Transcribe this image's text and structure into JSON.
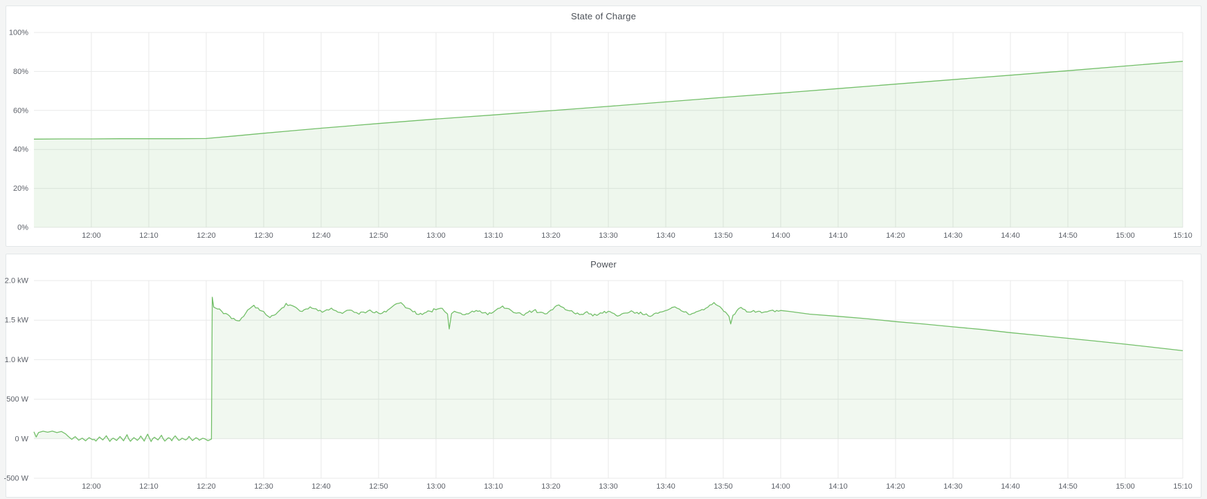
{
  "page": {
    "background": "#f4f5f5",
    "panel_background": "#ffffff",
    "gridline_color": "#e8e9e9",
    "accent_green": "#73bf69"
  },
  "panels": [
    {
      "title": "State of Charge"
    },
    {
      "title": "Power"
    }
  ],
  "chart_data": [
    {
      "type": "area",
      "title": "State of Charge",
      "unit": "percent",
      "xlim_minutes": [
        0,
        200
      ],
      "ylim": [
        0,
        100
      ],
      "fill_baseline": 0,
      "grid": true,
      "legend": "none",
      "x_ticks": [
        {
          "t": 10,
          "label": "12:00"
        },
        {
          "t": 20,
          "label": "12:10"
        },
        {
          "t": 30,
          "label": "12:20"
        },
        {
          "t": 40,
          "label": "12:30"
        },
        {
          "t": 50,
          "label": "12:40"
        },
        {
          "t": 60,
          "label": "12:50"
        },
        {
          "t": 70,
          "label": "13:00"
        },
        {
          "t": 80,
          "label": "13:10"
        },
        {
          "t": 90,
          "label": "13:20"
        },
        {
          "t": 100,
          "label": "13:30"
        },
        {
          "t": 110,
          "label": "13:40"
        },
        {
          "t": 120,
          "label": "13:50"
        },
        {
          "t": 130,
          "label": "14:00"
        },
        {
          "t": 140,
          "label": "14:10"
        },
        {
          "t": 150,
          "label": "14:20"
        },
        {
          "t": 160,
          "label": "14:30"
        },
        {
          "t": 170,
          "label": "14:40"
        },
        {
          "t": 180,
          "label": "14:50"
        },
        {
          "t": 190,
          "label": "15:00"
        },
        {
          "t": 200,
          "label": "15:10"
        }
      ],
      "y_ticks": [
        {
          "v": 0,
          "label": "0%"
        },
        {
          "v": 20,
          "label": "20%"
        },
        {
          "v": 40,
          "label": "40%"
        },
        {
          "v": 60,
          "label": "60%"
        },
        {
          "v": 80,
          "label": "80%"
        },
        {
          "v": 100,
          "label": "100%"
        }
      ],
      "series": [
        {
          "name": "State of Charge",
          "color": "#73bf69",
          "fill": "rgba(115,191,105,0.12)",
          "points": [
            [
              0,
              45.3
            ],
            [
              5,
              45.4
            ],
            [
              10,
              45.4
            ],
            [
              15,
              45.5
            ],
            [
              20,
              45.5
            ],
            [
              25,
              45.5
            ],
            [
              30,
              45.6
            ],
            [
              35,
              46.9
            ],
            [
              40,
              48.3
            ],
            [
              45,
              49.6
            ],
            [
              50,
              50.9
            ],
            [
              55,
              52.1
            ],
            [
              60,
              53.3
            ],
            [
              70,
              55.6
            ],
            [
              80,
              57.7
            ],
            [
              90,
              59.9
            ],
            [
              100,
              62.1
            ],
            [
              110,
              64.4
            ],
            [
              120,
              66.7
            ],
            [
              130,
              68.9
            ],
            [
              140,
              71.2
            ],
            [
              150,
              73.5
            ],
            [
              160,
              75.8
            ],
            [
              170,
              78.1
            ],
            [
              180,
              80.4
            ],
            [
              190,
              82.8
            ],
            [
              200,
              85.2
            ]
          ]
        }
      ]
    },
    {
      "type": "area",
      "title": "Power",
      "unit": "watt",
      "xlim_minutes": [
        0,
        200
      ],
      "ylim": [
        -500,
        2000
      ],
      "fill_baseline": 0,
      "grid": true,
      "legend": "none",
      "x_ticks": [
        {
          "t": 10,
          "label": "12:00"
        },
        {
          "t": 20,
          "label": "12:10"
        },
        {
          "t": 30,
          "label": "12:20"
        },
        {
          "t": 40,
          "label": "12:30"
        },
        {
          "t": 50,
          "label": "12:40"
        },
        {
          "t": 60,
          "label": "12:50"
        },
        {
          "t": 70,
          "label": "13:00"
        },
        {
          "t": 80,
          "label": "13:10"
        },
        {
          "t": 90,
          "label": "13:20"
        },
        {
          "t": 100,
          "label": "13:30"
        },
        {
          "t": 110,
          "label": "13:40"
        },
        {
          "t": 120,
          "label": "13:50"
        },
        {
          "t": 130,
          "label": "14:00"
        },
        {
          "t": 140,
          "label": "14:10"
        },
        {
          "t": 150,
          "label": "14:20"
        },
        {
          "t": 160,
          "label": "14:30"
        },
        {
          "t": 170,
          "label": "14:40"
        },
        {
          "t": 180,
          "label": "14:50"
        },
        {
          "t": 190,
          "label": "15:00"
        },
        {
          "t": 200,
          "label": "15:10"
        }
      ],
      "y_ticks": [
        {
          "v": -500,
          "label": "-500 W"
        },
        {
          "v": 0,
          "label": "0 W"
        },
        {
          "v": 500,
          "label": "500 W"
        },
        {
          "v": 1000,
          "label": "1.0 kW"
        },
        {
          "v": 1500,
          "label": "1.5 kW"
        },
        {
          "v": 2000,
          "label": "2.0 kW"
        }
      ],
      "series": [
        {
          "name": "Power",
          "color": "#73bf69",
          "fill": "rgba(115,191,105,0.10)",
          "noise": {
            "step": 0.3,
            "seed": 42,
            "ranges": [
              {
                "from": 6,
                "to": 30.9,
                "amp": 16
              },
              {
                "from": 31.3,
                "to": 130,
                "amp": 20
              }
            ]
          },
          "points": [
            [
              0,
              88
            ],
            [
              0.4,
              22
            ],
            [
              0.8,
              78
            ],
            [
              1.6,
              95
            ],
            [
              2.4,
              82
            ],
            [
              3.2,
              96
            ],
            [
              4,
              78
            ],
            [
              4.8,
              92
            ],
            [
              5.5,
              62
            ],
            [
              6,
              28
            ],
            [
              6.6,
              -8
            ],
            [
              7.2,
              26
            ],
            [
              7.8,
              -18
            ],
            [
              8.4,
              8
            ],
            [
              9,
              -26
            ],
            [
              9.6,
              14
            ],
            [
              10.2,
              -12
            ],
            [
              10.8,
              -30
            ],
            [
              11.4,
              22
            ],
            [
              12,
              -16
            ],
            [
              12.6,
              38
            ],
            [
              13.2,
              -34
            ],
            [
              13.8,
              8
            ],
            [
              14.4,
              -22
            ],
            [
              15,
              28
            ],
            [
              15.6,
              -26
            ],
            [
              16.2,
              52
            ],
            [
              16.8,
              -32
            ],
            [
              17.4,
              14
            ],
            [
              18,
              -20
            ],
            [
              18.6,
              34
            ],
            [
              19.2,
              -30
            ],
            [
              19.8,
              58
            ],
            [
              20.4,
              -36
            ],
            [
              21,
              18
            ],
            [
              21.6,
              -16
            ],
            [
              22.2,
              44
            ],
            [
              22.8,
              -30
            ],
            [
              23.4,
              12
            ],
            [
              24,
              -26
            ],
            [
              24.6,
              36
            ],
            [
              25.2,
              -20
            ],
            [
              25.8,
              8
            ],
            [
              26.4,
              -16
            ],
            [
              27,
              30
            ],
            [
              27.6,
              -24
            ],
            [
              28.2,
              12
            ],
            [
              28.8,
              -18
            ],
            [
              29.4,
              6
            ],
            [
              30,
              -12
            ],
            [
              30.9,
              -4
            ],
            [
              31.05,
              1790
            ],
            [
              31.3,
              1665
            ],
            [
              32,
              1640
            ],
            [
              32.7,
              1612
            ],
            [
              33.4,
              1585
            ],
            [
              34.1,
              1550
            ],
            [
              34.8,
              1522
            ],
            [
              35.5,
              1492
            ],
            [
              36.2,
              1532
            ],
            [
              36.9,
              1592
            ],
            [
              37.6,
              1648
            ],
            [
              38.3,
              1688
            ],
            [
              39,
              1655
            ],
            [
              39.7,
              1615
            ],
            [
              40.4,
              1568
            ],
            [
              41.1,
              1532
            ],
            [
              41.8,
              1562
            ],
            [
              42.5,
              1605
            ],
            [
              43.2,
              1655
            ],
            [
              43.9,
              1712
            ],
            [
              44.6,
              1692
            ],
            [
              45.3,
              1672
            ],
            [
              46,
              1636
            ],
            [
              46.7,
              1610
            ],
            [
              47.4,
              1642
            ],
            [
              48.1,
              1668
            ],
            [
              48.8,
              1645
            ],
            [
              49.5,
              1618
            ],
            [
              50.2,
              1600
            ],
            [
              51,
              1632
            ],
            [
              51.8,
              1652
            ],
            [
              52.6,
              1618
            ],
            [
              53.4,
              1596
            ],
            [
              54.2,
              1612
            ],
            [
              55,
              1628
            ],
            [
              55.8,
              1598
            ],
            [
              56.6,
              1575
            ],
            [
              57.4,
              1602
            ],
            [
              58.2,
              1618
            ],
            [
              59,
              1598
            ],
            [
              60,
              1588
            ],
            [
              61,
              1612
            ],
            [
              62,
              1648
            ],
            [
              62.8,
              1695
            ],
            [
              63.6,
              1715
            ],
            [
              64.4,
              1688
            ],
            [
              65.2,
              1648
            ],
            [
              66,
              1605
            ],
            [
              67,
              1572
            ],
            [
              68,
              1592
            ],
            [
              69,
              1612
            ],
            [
              70,
              1632
            ],
            [
              70.8,
              1650
            ],
            [
              71.5,
              1608
            ],
            [
              72,
              1578
            ],
            [
              72.3,
              1388
            ],
            [
              72.7,
              1582
            ],
            [
              73.2,
              1612
            ],
            [
              74,
              1592
            ],
            [
              75,
              1568
            ],
            [
              76,
              1598
            ],
            [
              77,
              1622
            ],
            [
              78,
              1592
            ],
            [
              79,
              1568
            ],
            [
              80,
              1602
            ],
            [
              80.8,
              1648
            ],
            [
              81.6,
              1678
            ],
            [
              82.4,
              1648
            ],
            [
              83.2,
              1615
            ],
            [
              84,
              1588
            ],
            [
              85,
              1568
            ],
            [
              86,
              1598
            ],
            [
              87,
              1622
            ],
            [
              88,
              1598
            ],
            [
              89,
              1578
            ],
            [
              90,
              1628
            ],
            [
              90.7,
              1668
            ],
            [
              91.4,
              1692
            ],
            [
              92.2,
              1658
            ],
            [
              93,
              1622
            ],
            [
              94,
              1592
            ],
            [
              95,
              1570
            ],
            [
              96,
              1598
            ],
            [
              97,
              1578
            ],
            [
              98,
              1560
            ],
            [
              99,
              1588
            ],
            [
              100,
              1612
            ],
            [
              101,
              1582
            ],
            [
              102,
              1560
            ],
            [
              103,
              1590
            ],
            [
              104,
              1618
            ],
            [
              105,
              1598
            ],
            [
              106,
              1572
            ],
            [
              107,
              1552
            ],
            [
              108,
              1582
            ],
            [
              109,
              1602
            ],
            [
              110,
              1622
            ],
            [
              110.8,
              1645
            ],
            [
              111.6,
              1668
            ],
            [
              112.4,
              1638
            ],
            [
              113.2,
              1602
            ],
            [
              114,
              1572
            ],
            [
              115,
              1592
            ],
            [
              116,
              1622
            ],
            [
              117,
              1652
            ],
            [
              117.7,
              1692
            ],
            [
              118.4,
              1722
            ],
            [
              119.1,
              1682
            ],
            [
              119.8,
              1642
            ],
            [
              120.4,
              1602
            ],
            [
              121,
              1548
            ],
            [
              121.3,
              1452
            ],
            [
              121.7,
              1562
            ],
            [
              122.4,
              1622
            ],
            [
              123.1,
              1662
            ],
            [
              123.8,
              1632
            ],
            [
              124.5,
              1602
            ],
            [
              125.3,
              1622
            ],
            [
              126.1,
              1612
            ],
            [
              127,
              1600
            ],
            [
              128,
              1616
            ],
            [
              129,
              1606
            ],
            [
              130,
              1622
            ],
            [
              132,
              1606
            ],
            [
              135,
              1576
            ],
            [
              140,
              1548
            ],
            [
              145,
              1518
            ],
            [
              150,
              1482
            ],
            [
              155,
              1450
            ],
            [
              160,
              1415
            ],
            [
              165,
              1382
            ],
            [
              170,
              1342
            ],
            [
              175,
              1306
            ],
            [
              180,
              1270
            ],
            [
              185,
              1234
            ],
            [
              190,
              1196
            ],
            [
              195,
              1156
            ],
            [
              200,
              1114
            ]
          ]
        }
      ]
    }
  ]
}
